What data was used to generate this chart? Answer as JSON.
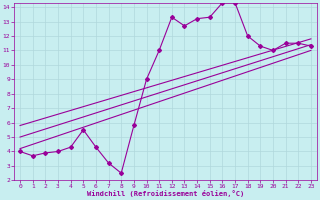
{
  "xlabel": "Windchill (Refroidissement éolien,°C)",
  "bg_color": "#c8eef0",
  "grid_color": "#b0d8dc",
  "line_color": "#990099",
  "xlim": [
    -0.5,
    23.5
  ],
  "ylim": [
    2,
    14.3
  ],
  "xticks": [
    0,
    1,
    2,
    3,
    4,
    5,
    6,
    7,
    8,
    9,
    10,
    11,
    12,
    13,
    14,
    15,
    16,
    17,
    18,
    19,
    20,
    21,
    22,
    23
  ],
  "yticks": [
    2,
    3,
    4,
    5,
    6,
    7,
    8,
    9,
    10,
    11,
    12,
    13,
    14
  ],
  "line1_x": [
    0,
    1,
    2,
    3,
    4,
    5,
    6,
    7,
    8,
    9,
    10,
    11,
    12,
    13,
    14,
    15,
    16,
    17,
    18,
    19,
    20,
    21,
    22,
    23
  ],
  "line1_y": [
    4.0,
    3.7,
    3.9,
    4.0,
    4.3,
    5.5,
    4.3,
    3.2,
    2.5,
    5.8,
    9.0,
    11.0,
    13.3,
    12.7,
    13.2,
    13.3,
    14.3,
    14.3,
    12.0,
    11.3,
    11.0,
    11.5,
    11.5,
    11.3
  ],
  "line2_x": [
    0,
    23
  ],
  "line2_y": [
    5.8,
    11.8
  ],
  "line3_x": [
    0,
    23
  ],
  "line3_y": [
    5.0,
    11.4
  ],
  "line4_x": [
    0,
    23
  ],
  "line4_y": [
    4.2,
    11.0
  ]
}
